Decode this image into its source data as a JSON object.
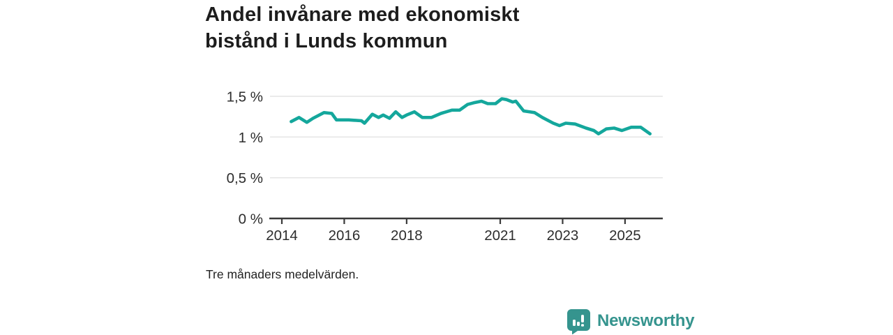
{
  "title_lines": [
    "Andel invånare med ekonomiskt",
    "bistånd i Lunds kommun"
  ],
  "footnote": "Tre månaders medelvärden.",
  "branding": {
    "name": "Newsworthy",
    "icon": "bar-chart-speech-bubble-icon",
    "color": "#35948e"
  },
  "colors": {
    "line": "#14a79c",
    "grid": "#e3e3e3",
    "axis": "#3a3a3a",
    "title_text": "#1d1d1d",
    "tick_text": "#2d2d2d",
    "background": "#ffffff"
  },
  "chart_data": {
    "type": "line",
    "title": "Andel invånare med ekonomiskt bistånd i Lunds kommun",
    "subtitle": "Tre månaders medelvärden.",
    "xlabel": "",
    "ylabel": "",
    "unit": "%",
    "grid": "horizontal",
    "legend": "none",
    "xlim": [
      2013.62,
      2026.21
    ],
    "ylim": [
      0,
      1.5
    ],
    "y_ticks": [
      {
        "value": 0,
        "label": "0 %"
      },
      {
        "value": 0.5,
        "label": "0,5 %"
      },
      {
        "value": 1,
        "label": "1 %"
      },
      {
        "value": 1.5,
        "label": "1,5 %"
      }
    ],
    "x_ticks": [
      {
        "value": 2014,
        "label": "2014"
      },
      {
        "value": 2016,
        "label": "2016"
      },
      {
        "value": 2018,
        "label": "2018"
      },
      {
        "value": 2021,
        "label": "2021"
      },
      {
        "value": 2023,
        "label": "2023"
      },
      {
        "value": 2025,
        "label": "2025"
      }
    ],
    "series": [
      {
        "name": "Andel invånare med ekonomiskt bistånd",
        "x": [
          2014.3,
          2014.55,
          2014.8,
          2015.0,
          2015.35,
          2015.6,
          2015.75,
          2016.0,
          2016.15,
          2016.55,
          2016.65,
          2016.9,
          2017.1,
          2017.25,
          2017.45,
          2017.65,
          2017.85,
          2018.0,
          2018.25,
          2018.5,
          2018.8,
          2019.1,
          2019.45,
          2019.7,
          2019.95,
          2020.15,
          2020.4,
          2020.6,
          2020.85,
          2021.05,
          2021.2,
          2021.4,
          2021.5,
          2021.75,
          2022.1,
          2022.35,
          2022.7,
          2022.9,
          2023.1,
          2023.4,
          2023.75,
          2024.0,
          2024.15,
          2024.4,
          2024.65,
          2024.9,
          2025.2,
          2025.5,
          2025.8
        ],
        "y": [
          1.19,
          1.24,
          1.18,
          1.23,
          1.3,
          1.29,
          1.21,
          1.21,
          1.21,
          1.2,
          1.17,
          1.28,
          1.24,
          1.27,
          1.23,
          1.31,
          1.24,
          1.27,
          1.31,
          1.24,
          1.24,
          1.29,
          1.33,
          1.33,
          1.4,
          1.42,
          1.44,
          1.41,
          1.41,
          1.47,
          1.46,
          1.43,
          1.44,
          1.32,
          1.3,
          1.24,
          1.17,
          1.14,
          1.17,
          1.16,
          1.11,
          1.08,
          1.04,
          1.1,
          1.11,
          1.08,
          1.12,
          1.12,
          1.04
        ]
      }
    ]
  }
}
